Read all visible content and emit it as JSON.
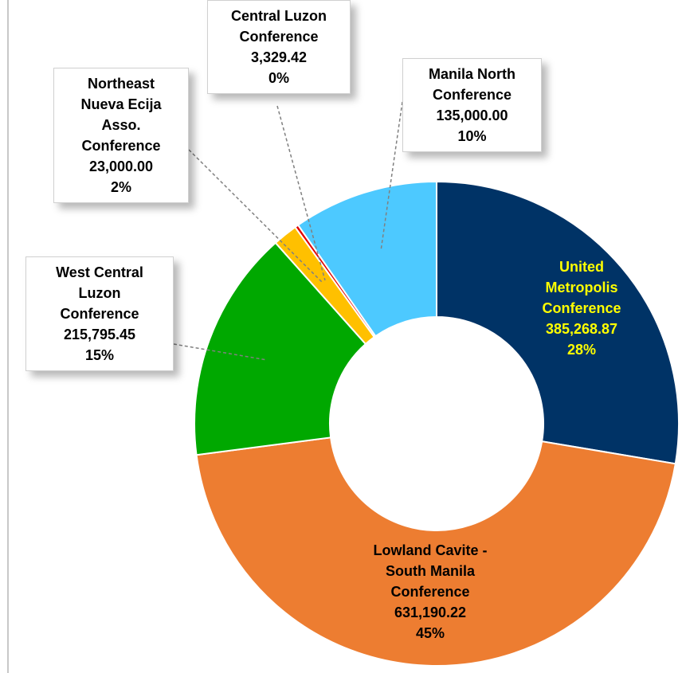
{
  "chart_data": {
    "type": "donut",
    "categories": [
      "United Metropolis Conference",
      "Lowland Cavite - South Manila Conference",
      "West Central Luzon Conference",
      "Northeast Nueva Ecija Asso. Conference",
      "Central Luzon Conference",
      "Manila North Conference"
    ],
    "values": [
      385268.87,
      631190.22,
      215795.45,
      23000.0,
      3329.42,
      135000.0
    ],
    "value_labels": [
      "385,268.87",
      "631,190.22",
      "215,795.45",
      "23,000.00",
      "3,329.42",
      "135,000.00"
    ],
    "percent_labels": [
      "28%",
      "45%",
      "15%",
      "2%",
      "0%",
      "10%"
    ],
    "colors": [
      "#003366",
      "#ed7d31",
      "#00a800",
      "#ffc000",
      "#e00000",
      "#4dc9ff"
    ]
  }
}
